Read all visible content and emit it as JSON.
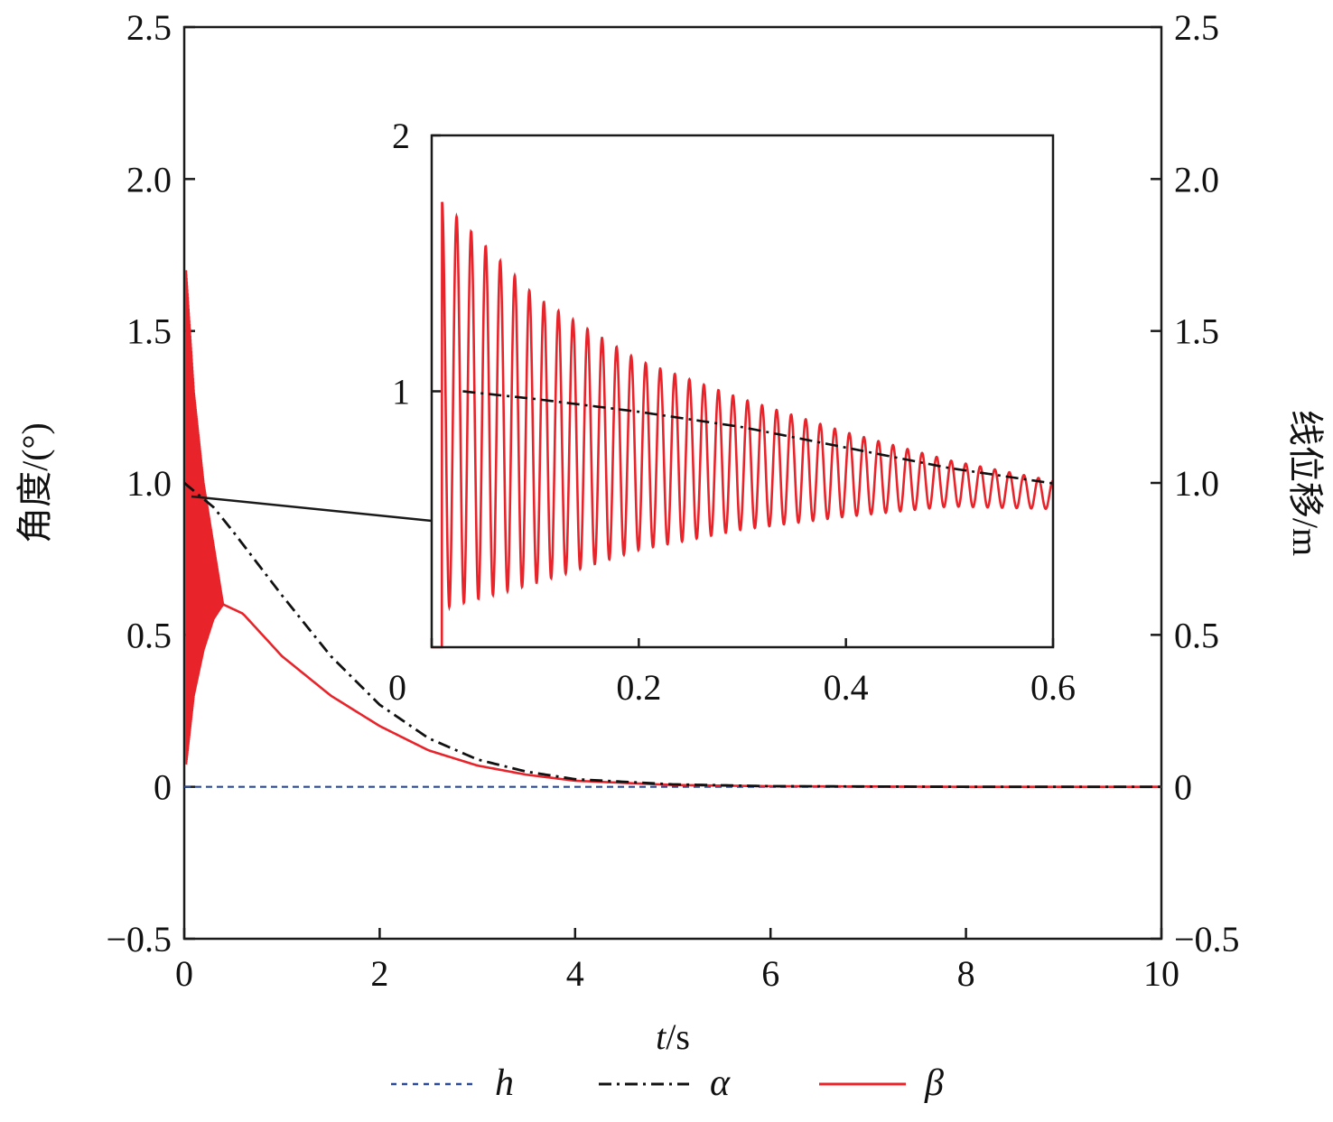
{
  "chart_data": [
    {
      "type": "line",
      "xlabel_italic": "t",
      "xlabel_unit": "/s",
      "ylabel_left": "角度/(°)",
      "ylabel_right": "线位移/m",
      "xlim": [
        0,
        10
      ],
      "ylim": [
        -0.5,
        2.5
      ],
      "x_ticks": [
        "0",
        "2",
        "4",
        "6",
        "8",
        "10"
      ],
      "y_ticks": [
        "−0.5",
        "0",
        "0.5",
        "1.0",
        "1.5",
        "2.0",
        "2.5"
      ],
      "y_right_ticks": [
        "−0.5",
        "0",
        "0.5",
        "1.0",
        "1.5",
        "2.0",
        "2.5"
      ],
      "legend_placement": "bottom",
      "series": [
        {
          "name": "h",
          "color": "#2b4a9b",
          "style": "dotted",
          "description_values": {
            "x": [
              0,
              10
            ],
            "y": [
              0,
              0
            ]
          }
        },
        {
          "name": "α",
          "color": "#111111",
          "style": "dash-dot",
          "x": [
            0,
            0.3,
            0.5,
            1.0,
            1.5,
            2.0,
            2.5,
            3.0,
            3.5,
            4.0,
            5.0,
            6.0,
            8.0,
            10.0
          ],
          "y": [
            1.0,
            0.92,
            0.84,
            0.63,
            0.43,
            0.27,
            0.16,
            0.09,
            0.05,
            0.025,
            0.008,
            0.002,
            0.0,
            0.0
          ]
        },
        {
          "name": "β",
          "color": "#e8232a",
          "style": "solid",
          "oscillation_envelope": {
            "x": [
              0.02,
              0.1,
              0.2,
              0.3,
              0.4
            ],
            "upper": [
              1.7,
              1.3,
              1.0,
              0.8,
              0.6
            ],
            "lower": [
              0.07,
              0.3,
              0.45,
              0.55,
              0.6
            ]
          },
          "x": [
            0.4,
            0.6,
            0.8,
            1.0,
            1.5,
            2.0,
            2.5,
            3.0,
            3.5,
            4.0,
            5.0,
            6.0,
            8.0,
            10.0
          ],
          "y": [
            0.6,
            0.57,
            0.5,
            0.43,
            0.3,
            0.2,
            0.12,
            0.07,
            0.04,
            0.02,
            0.006,
            0.002,
            0.0,
            0.0
          ]
        }
      ]
    },
    {
      "type": "line",
      "role": "inset",
      "xlim": [
        0,
        0.6
      ],
      "ylim": [
        0,
        2
      ],
      "x_ticks": [
        "0",
        "0.2",
        "0.4",
        "0.6"
      ],
      "y_ticks": [
        "1",
        "2"
      ],
      "series": [
        {
          "name": "α",
          "x": [
            0.03,
            0.1,
            0.2,
            0.3,
            0.4,
            0.5,
            0.6
          ],
          "y": [
            1.0,
            0.97,
            0.92,
            0.86,
            0.78,
            0.7,
            0.64
          ]
        },
        {
          "name": "β",
          "oscillation_count": 42,
          "envelope": {
            "x": [
              0.01,
              0.1,
              0.2,
              0.3,
              0.4,
              0.5,
              0.6
            ],
            "upper": [
              1.74,
              1.37,
              1.12,
              0.97,
              0.84,
              0.73,
              0.65
            ],
            "lower": [
              0.15,
              0.25,
              0.38,
              0.46,
              0.51,
              0.55,
              0.54
            ]
          }
        }
      ]
    }
  ]
}
